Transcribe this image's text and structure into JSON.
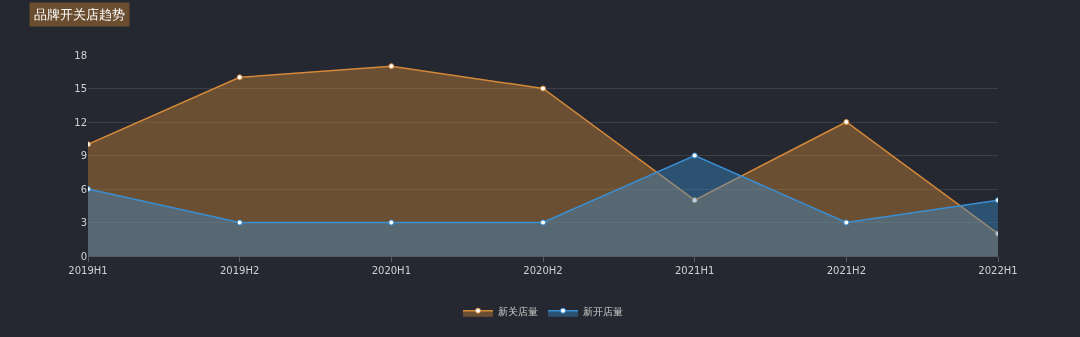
{
  "chart_data": {
    "type": "area",
    "title": "品牌开关店趋势",
    "categories": [
      "2019H1",
      "2019H2",
      "2020H1",
      "2020H2",
      "2021H1",
      "2021H2",
      "2022H1"
    ],
    "series": [
      {
        "name": "新关店量",
        "color": "#d4893a",
        "values": [
          10,
          16,
          17,
          15,
          5,
          12,
          2
        ]
      },
      {
        "name": "新开店量",
        "color": "#3a8fd4",
        "values": [
          6,
          3,
          3,
          3,
          9,
          3,
          5
        ]
      }
    ],
    "ylim": [
      0,
      18
    ],
    "yticks": [
      0,
      3,
      6,
      9,
      12,
      15,
      18
    ],
    "grid": "y",
    "legend": "bottom",
    "marker": "circle",
    "line_style": "solid"
  }
}
